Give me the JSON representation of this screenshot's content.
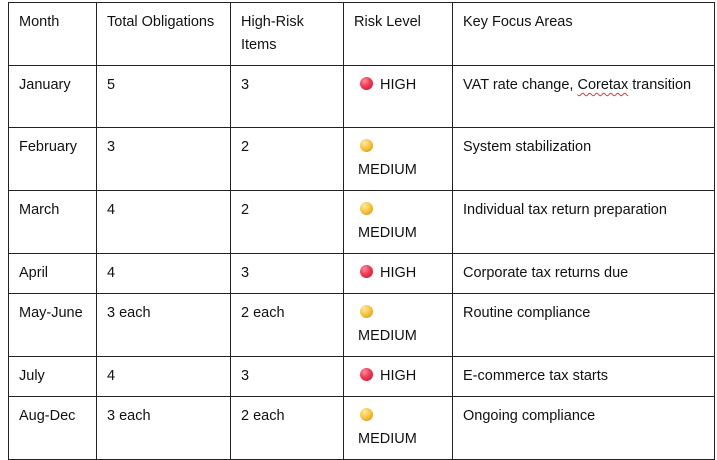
{
  "table": {
    "headers": {
      "month": "Month",
      "total": "Total Obligations",
      "high_risk": "High-Risk Items",
      "risk_level": "Risk Level",
      "focus": "Key Focus Areas"
    },
    "rows": [
      {
        "month": "January",
        "total": "5",
        "high_risk": "3",
        "level": "HIGH",
        "level_icon": "red-circle-icon",
        "level_color": "#e8324f",
        "focus_part1": "VAT rate change, ",
        "focus_part2": "Coretax",
        "focus_part3": " transition"
      },
      {
        "month": "February",
        "total": "3",
        "high_risk": "2",
        "level": "MEDIUM",
        "level_icon": "yellow-circle-icon",
        "level_color": "#f2b82e",
        "focus": "System stabilization"
      },
      {
        "month": "March",
        "total": "4",
        "high_risk": "2",
        "level": "MEDIUM",
        "level_icon": "yellow-circle-icon",
        "level_color": "#f2b82e",
        "focus": "Individual tax return preparation"
      },
      {
        "month": "April",
        "total": "4",
        "high_risk": "3",
        "level": "HIGH",
        "level_icon": "red-circle-icon",
        "level_color": "#e8324f",
        "focus": "Corporate tax returns due"
      },
      {
        "month": "May-June",
        "total": "3 each",
        "high_risk": "2 each",
        "level": "MEDIUM",
        "level_icon": "yellow-circle-icon",
        "level_color": "#f2b82e",
        "focus": "Routine compliance"
      },
      {
        "month": "July",
        "total": "4",
        "high_risk": "3",
        "level": "HIGH",
        "level_icon": "red-circle-icon",
        "level_color": "#e8324f",
        "focus": "E-commerce tax starts"
      },
      {
        "month": "Aug-Dec",
        "total": "3 each",
        "high_risk": "2 each",
        "level": "MEDIUM",
        "level_icon": "yellow-circle-icon",
        "level_color": "#f2b82e",
        "focus": "Ongoing compliance"
      }
    ]
  }
}
